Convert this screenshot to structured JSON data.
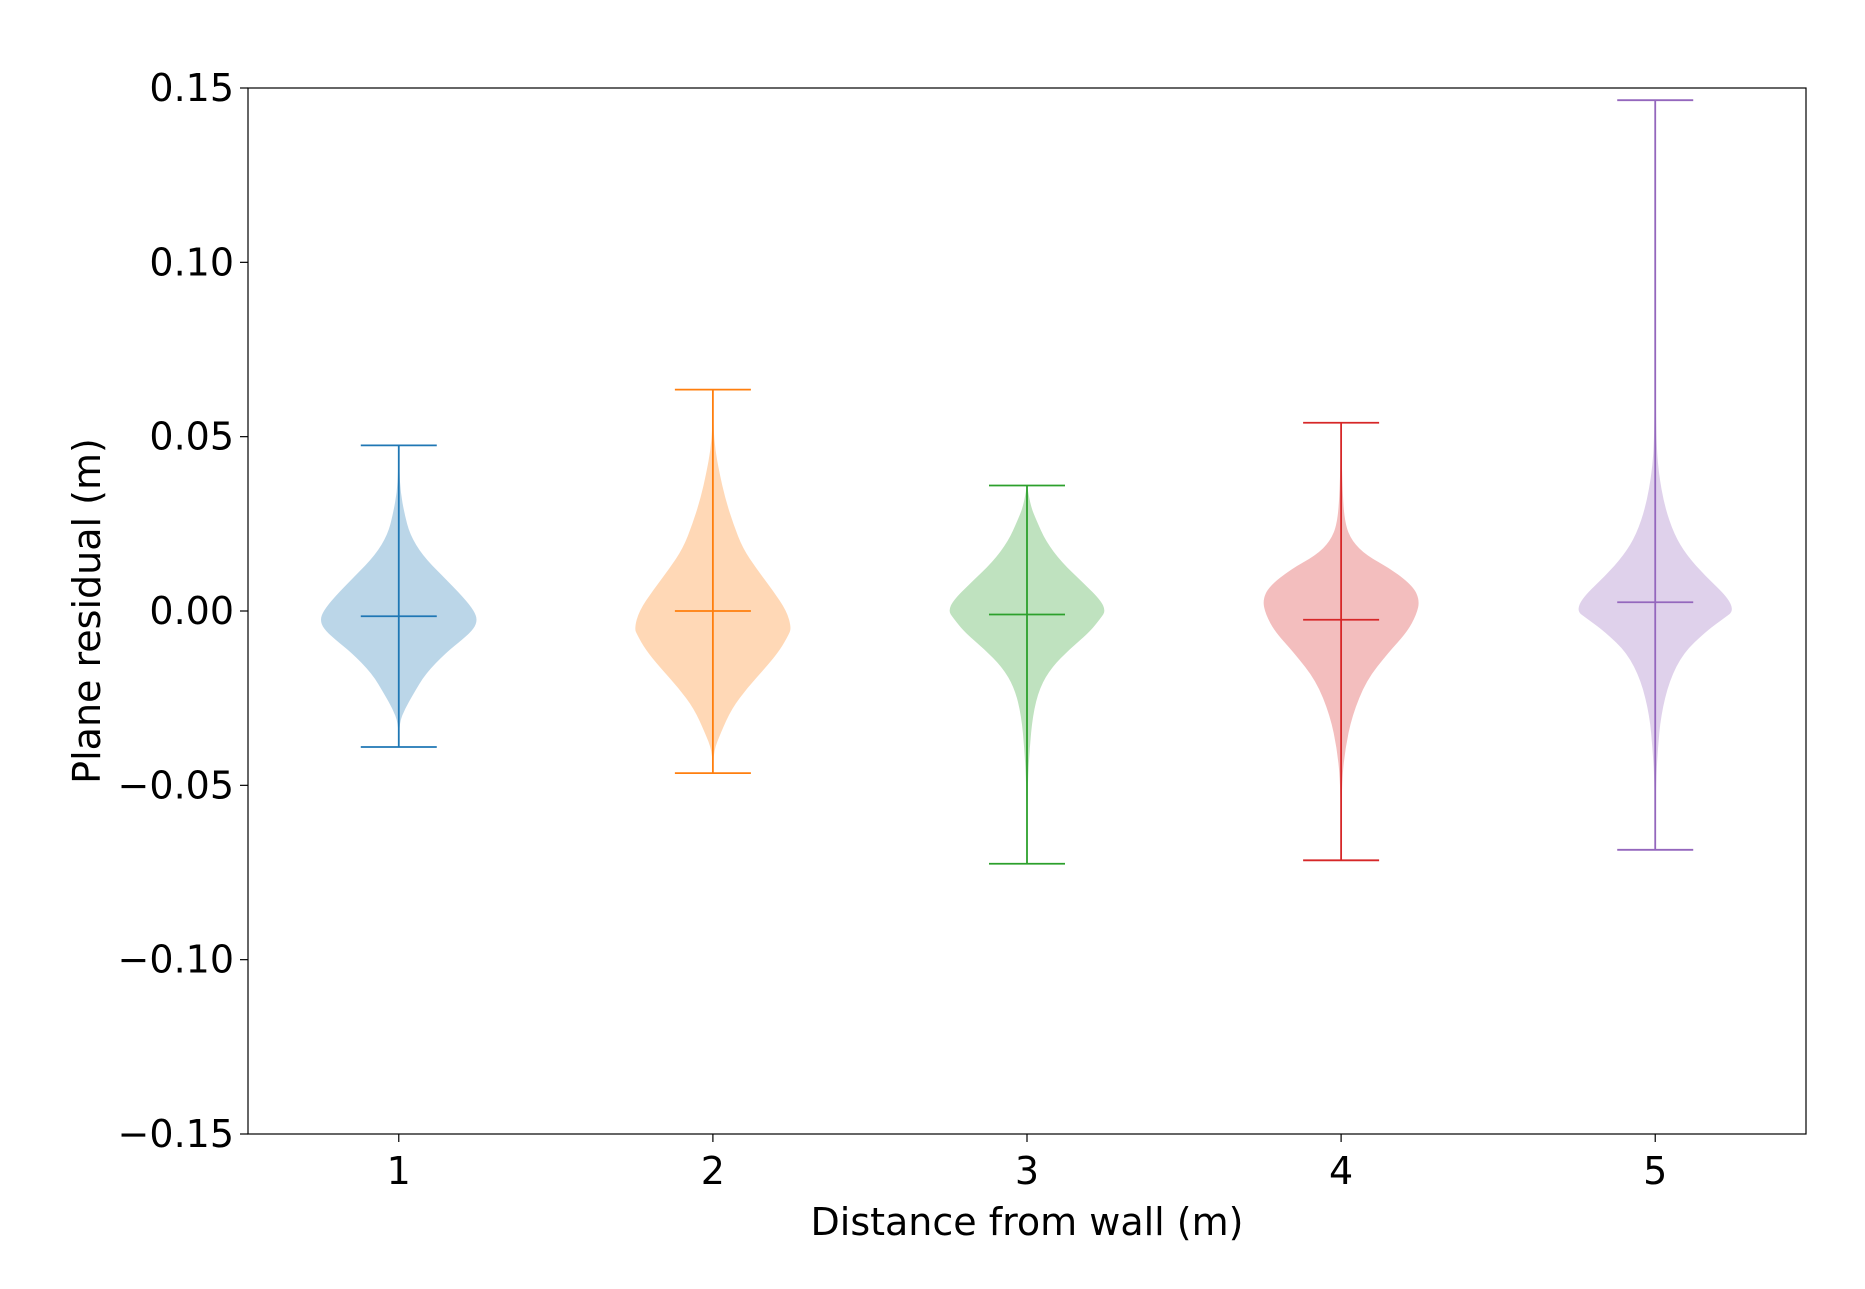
{
  "chart_data": {
    "type": "violin",
    "title": "",
    "xlabel": "Distance from wall (m)",
    "ylabel": "Plane residual (m)",
    "ylim": [
      -0.15,
      0.15
    ],
    "xlim": [
      0.52,
      5.48
    ],
    "y_ticks": [
      {
        "value": -0.15,
        "label": "−0.15"
      },
      {
        "value": -0.1,
        "label": "−0.10"
      },
      {
        "value": -0.05,
        "label": "−0.05"
      },
      {
        "value": 0.0,
        "label": "0.00"
      },
      {
        "value": 0.05,
        "label": "0.05"
      },
      {
        "value": 0.1,
        "label": "0.10"
      },
      {
        "value": 0.15,
        "label": "0.15"
      }
    ],
    "x_ticks": [
      {
        "value": 1,
        "label": "1"
      },
      {
        "value": 2,
        "label": "2"
      },
      {
        "value": 3,
        "label": "3"
      },
      {
        "value": 4,
        "label": "4"
      },
      {
        "value": 5,
        "label": "5"
      }
    ],
    "grid": false,
    "violins": [
      {
        "position": 1,
        "color": "#1f77b4",
        "min": -0.039,
        "max": 0.0475,
        "mean": -0.0015,
        "profile": [
          [
            -0.039,
            0.0
          ],
          [
            -0.032,
            0.002
          ],
          [
            -0.028,
            0.02
          ],
          [
            -0.024,
            0.045
          ],
          [
            -0.018,
            0.085
          ],
          [
            -0.012,
            0.15
          ],
          [
            -0.008,
            0.205
          ],
          [
            -0.005,
            0.24
          ],
          [
            -0.0025,
            0.25
          ],
          [
            0.0,
            0.24
          ],
          [
            0.004,
            0.205
          ],
          [
            0.01,
            0.14
          ],
          [
            0.016,
            0.075
          ],
          [
            0.022,
            0.035
          ],
          [
            0.028,
            0.018
          ],
          [
            0.034,
            0.006
          ],
          [
            0.04,
            0.002
          ],
          [
            0.0475,
            0.0
          ]
        ]
      },
      {
        "position": 2,
        "color": "#ff7f0e",
        "min": -0.0465,
        "max": 0.0635,
        "mean": 0.0,
        "profile": [
          [
            -0.0465,
            0.0
          ],
          [
            -0.04,
            0.003
          ],
          [
            -0.035,
            0.025
          ],
          [
            -0.028,
            0.06
          ],
          [
            -0.022,
            0.11
          ],
          [
            -0.016,
            0.17
          ],
          [
            -0.011,
            0.215
          ],
          [
            -0.007,
            0.24
          ],
          [
            -0.005,
            0.25
          ],
          [
            0.0,
            0.235
          ],
          [
            0.006,
            0.19
          ],
          [
            0.012,
            0.14
          ],
          [
            0.018,
            0.095
          ],
          [
            0.025,
            0.065
          ],
          [
            0.032,
            0.04
          ],
          [
            0.04,
            0.02
          ],
          [
            0.046,
            0.008
          ],
          [
            0.052,
            0.002
          ],
          [
            0.0635,
            0.0
          ]
        ]
      },
      {
        "position": 3,
        "color": "#2ca02c",
        "min": -0.0725,
        "max": 0.036,
        "mean": -0.001,
        "profile": [
          [
            -0.0725,
            0.0
          ],
          [
            -0.05,
            0.002
          ],
          [
            -0.04,
            0.008
          ],
          [
            -0.03,
            0.018
          ],
          [
            -0.022,
            0.04
          ],
          [
            -0.016,
            0.08
          ],
          [
            -0.011,
            0.135
          ],
          [
            -0.006,
            0.2
          ],
          [
            -0.002,
            0.235
          ],
          [
            0.0,
            0.25
          ],
          [
            0.003,
            0.235
          ],
          [
            0.008,
            0.18
          ],
          [
            0.014,
            0.11
          ],
          [
            0.02,
            0.06
          ],
          [
            0.026,
            0.03
          ],
          [
            0.03,
            0.012
          ],
          [
            0.036,
            0.0
          ]
        ]
      },
      {
        "position": 4,
        "color": "#d62728",
        "min": -0.0715,
        "max": 0.054,
        "mean": -0.0025,
        "profile": [
          [
            -0.0715,
            0.0
          ],
          [
            -0.05,
            0.002
          ],
          [
            -0.04,
            0.012
          ],
          [
            -0.03,
            0.035
          ],
          [
            -0.02,
            0.08
          ],
          [
            -0.012,
            0.15
          ],
          [
            -0.006,
            0.21
          ],
          [
            -0.001,
            0.24
          ],
          [
            0.003,
            0.25
          ],
          [
            0.007,
            0.23
          ],
          [
            0.012,
            0.16
          ],
          [
            0.016,
            0.08
          ],
          [
            0.02,
            0.035
          ],
          [
            0.025,
            0.012
          ],
          [
            0.035,
            0.004
          ],
          [
            0.054,
            0.0
          ]
        ]
      },
      {
        "position": 5,
        "color": "#9467bd",
        "min": -0.0685,
        "max": 0.1465,
        "mean": 0.0025,
        "profile": [
          [
            -0.0685,
            0.0
          ],
          [
            -0.05,
            0.002
          ],
          [
            -0.04,
            0.008
          ],
          [
            -0.03,
            0.018
          ],
          [
            -0.02,
            0.045
          ],
          [
            -0.012,
            0.09
          ],
          [
            -0.006,
            0.16
          ],
          [
            -0.002,
            0.22
          ],
          [
            0.0,
            0.25
          ],
          [
            0.004,
            0.23
          ],
          [
            0.01,
            0.16
          ],
          [
            0.016,
            0.1
          ],
          [
            0.022,
            0.06
          ],
          [
            0.03,
            0.03
          ],
          [
            0.04,
            0.01
          ],
          [
            0.05,
            0.003
          ],
          [
            0.07,
            0.001
          ],
          [
            0.1465,
            0.0
          ]
        ]
      }
    ]
  }
}
